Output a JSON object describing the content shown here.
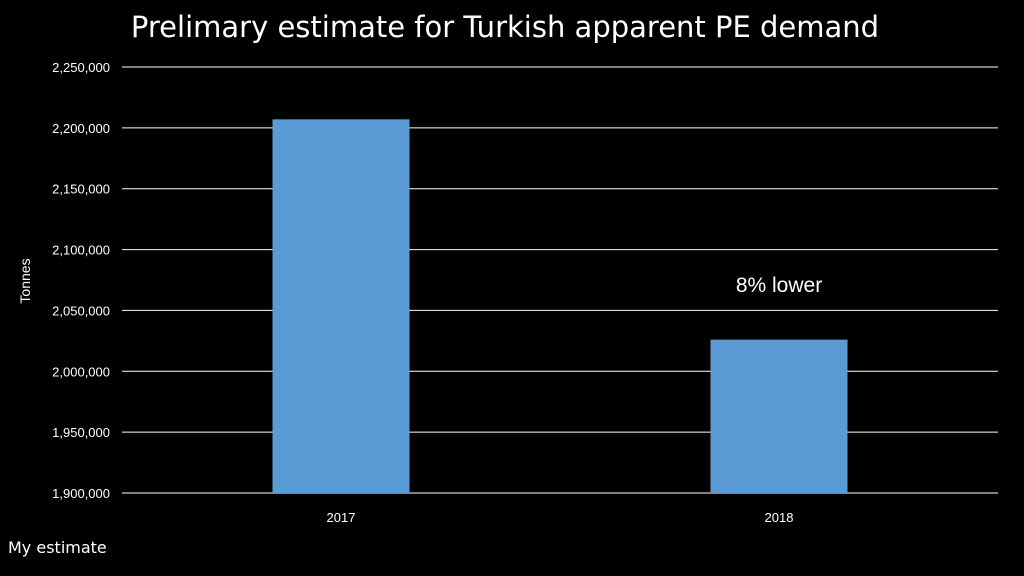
{
  "footnote": "My estimate",
  "colors": {
    "background": "#000000",
    "bar": "#5b9bd5",
    "gridline": "#ffffff",
    "text": "#ffffff"
  },
  "chart_data": {
    "type": "bar",
    "title": "Prelimary estimate for Turkish apparent PE demand",
    "xlabel": "",
    "ylabel": "Tonnes",
    "categories": [
      "2017",
      "2018"
    ],
    "values": [
      2207000,
      2026000
    ],
    "ylim": [
      1900000,
      2250000
    ],
    "yticks": [
      1900000,
      1950000,
      2000000,
      2050000,
      2100000,
      2150000,
      2200000,
      2250000
    ],
    "ytick_labels": [
      "1,900,000",
      "1,950,000",
      "2,000,000",
      "2,050,000",
      "2,100,000",
      "2,150,000",
      "2,200,000",
      "2,250,000"
    ],
    "grid": true,
    "legend": "none",
    "annotations": [
      {
        "text": "8% lower",
        "category": "2018",
        "y": 2071000
      }
    ]
  }
}
